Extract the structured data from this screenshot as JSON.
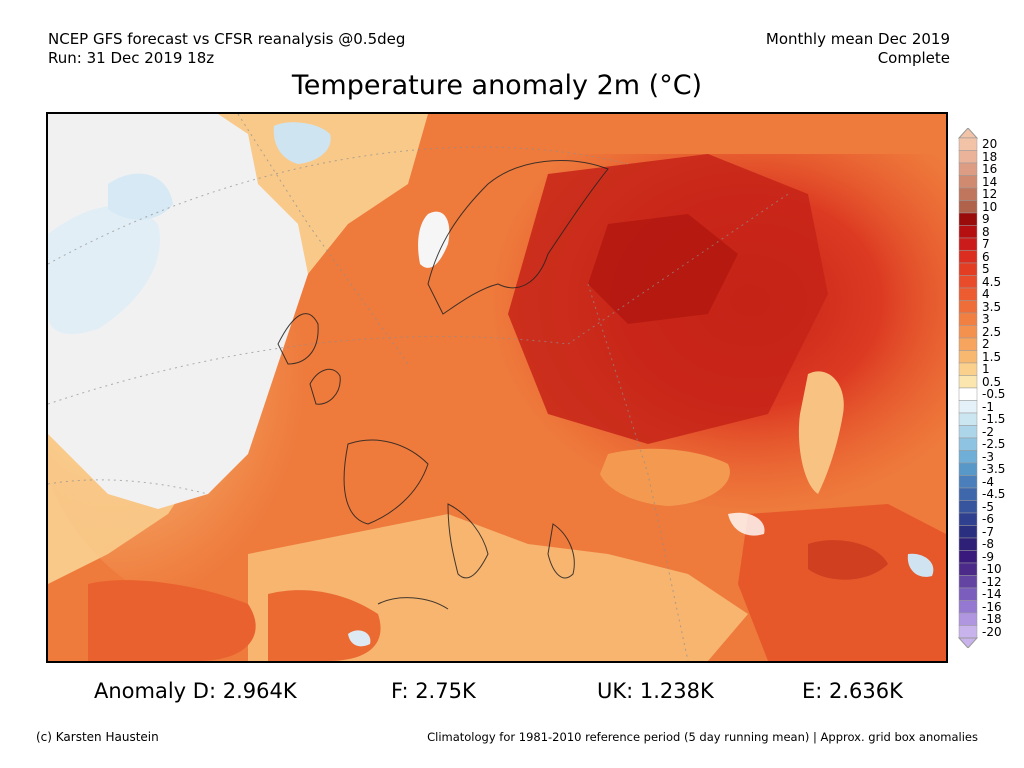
{
  "header": {
    "line1_left": "NCEP GFS forecast vs CFSR reanalysis @0.5deg",
    "line2_left": "Run: 31 Dec 2019 18z",
    "line1_right": "Monthly mean Dec 2019",
    "line2_right": "Complete"
  },
  "title": "Temperature anomaly 2m (°C)",
  "colorbar": {
    "labels": [
      "20",
      "18",
      "16",
      "14",
      "12",
      "10",
      "9",
      "8",
      "7",
      "6",
      "5",
      "4.5",
      "4",
      "3.5",
      "3",
      "2.5",
      "2",
      "1.5",
      "1",
      "0.5",
      "-0.5",
      "-1",
      "-1.5",
      "-2",
      "-2.5",
      "-3",
      "-3.5",
      "-4",
      "-4.5",
      "-5",
      "-6",
      "-7",
      "-8",
      "-9",
      "-10",
      "-12",
      "-14",
      "-16",
      "-18",
      "-20"
    ],
    "colors": [
      "#f3c3a8",
      "#eab39a",
      "#dd9d84",
      "#cf8a70",
      "#c0765d",
      "#b1624a",
      "#9a0b0b",
      "#b50f12",
      "#cc1b1b",
      "#db2e20",
      "#e33d24",
      "#e84c2a",
      "#ec5c30",
      "#ef6d38",
      "#f27f42",
      "#f4914f",
      "#f6a45e",
      "#f8b870",
      "#fbcf8c",
      "#fbe6b0",
      "#ffffff",
      "#e5f1f8",
      "#cbe5f1",
      "#add5ea",
      "#8ec3e1",
      "#6faed6",
      "#5898c9",
      "#4a7fbb",
      "#3f68ac",
      "#37559e",
      "#2e408f",
      "#2b2f80",
      "#2e1f77",
      "#3a1a7c",
      "#4b2a8a",
      "#6344a3",
      "#7a5dbd",
      "#9478d2",
      "#b095e1",
      "#c9b3ec"
    ]
  },
  "stats": {
    "anomaly_d": "Anomaly D: 2.964K",
    "anomaly_f": "F: 2.75K",
    "anomaly_uk": "UK: 1.238K",
    "anomaly_e": "E: 2.636K"
  },
  "footer": {
    "credit": "(c) Karsten Haustein",
    "note": "Climatology for 1981-2010 reference period (5 day running mean) | Approx. grid box anomalies"
  }
}
